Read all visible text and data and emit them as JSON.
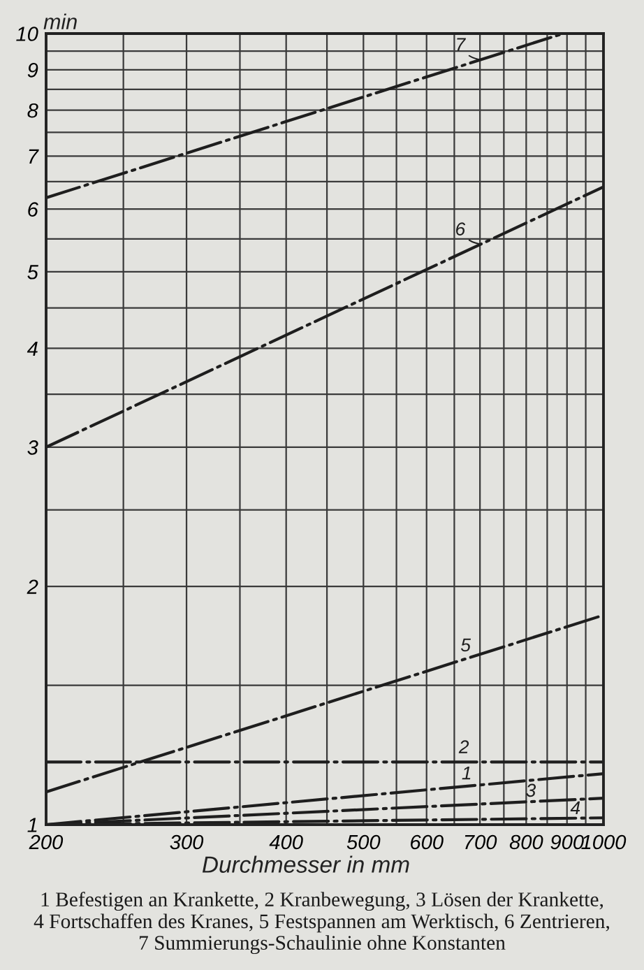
{
  "chart_data": {
    "type": "line",
    "xlabel": "Durchmesser in mm",
    "ylabel": "min",
    "log": "xy",
    "grid": true,
    "line_style": "dashed",
    "xlim": [
      200,
      1000
    ],
    "xticks": [
      200,
      {
        "value": 250,
        "label": null
      },
      300,
      {
        "value": 350,
        "label": null
      },
      400,
      {
        "value": 450,
        "label": null
      },
      500,
      {
        "value": 550,
        "label": null
      },
      600,
      {
        "value": 650,
        "label": null
      },
      700,
      {
        "value": 750,
        "label": null
      },
      800,
      {
        "value": 850,
        "label": null
      },
      900,
      {
        "value": 950,
        "label": null
      },
      1000
    ],
    "ylim": [
      1,
      10
    ],
    "yticks": [
      1,
      {
        "value": 1.5,
        "label": null
      },
      2,
      {
        "value": 2.5,
        "label": null
      },
      3,
      {
        "value": 3.5,
        "label": null
      },
      4,
      {
        "value": 4.5,
        "label": null
      },
      5,
      {
        "value": 5.5,
        "label": null
      },
      6,
      {
        "value": 6.5,
        "label": null
      },
      7,
      {
        "value": 7.5,
        "label": null
      },
      8,
      {
        "value": 8.5,
        "label": null
      },
      9,
      {
        "value": 9.5,
        "label": null
      },
      10
    ],
    "series": [
      {
        "name": "1",
        "color": "#1e1e1e",
        "x": [
          200,
          1000
        ],
        "values": [
          1.0,
          1.16
        ]
      },
      {
        "name": "2",
        "color": "#1e1e1e",
        "x": [
          200,
          1000
        ],
        "values": [
          1.2,
          1.2
        ]
      },
      {
        "name": "3",
        "color": "#1e1e1e",
        "x": [
          200,
          1000
        ],
        "values": [
          1.0,
          1.08
        ]
      },
      {
        "name": "4",
        "color": "#1e1e1e",
        "x": [
          200,
          1000
        ],
        "values": [
          1.0,
          1.02
        ]
      },
      {
        "name": "5",
        "color": "#1e1e1e",
        "x": [
          200,
          1000
        ],
        "values": [
          1.1,
          1.84
        ]
      },
      {
        "name": "6",
        "color": "#1e1e1e",
        "x": [
          200,
          1000
        ],
        "values": [
          3.0,
          6.4
        ]
      },
      {
        "name": "7",
        "color": "#1e1e1e",
        "x": [
          200,
          890
        ],
        "values": [
          6.2,
          10.0
        ]
      }
    ],
    "annotations": [
      "1 Befestigen an Krankette, 2 Kranbewegung, 3 Lösen der Krankette,\n4 Fortschaffen des Kranes, 5 Festspannen am Werktisch, 6 Zentrieren,\n7 Summierungs-Schaulinie ohne Konstanten"
    ]
  }
}
